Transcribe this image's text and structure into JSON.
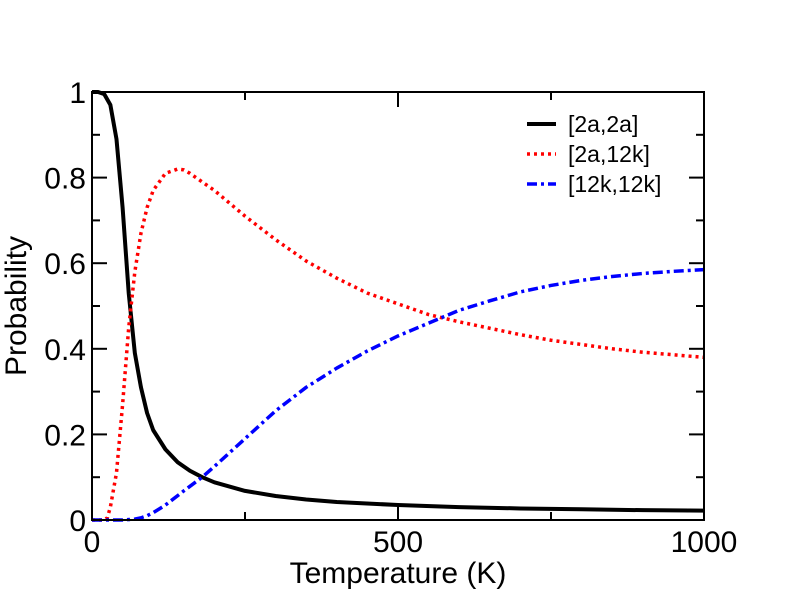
{
  "chart_data": {
    "type": "line",
    "title": "",
    "xlabel": "Temperature (K)",
    "ylabel": "Probability",
    "xlim": [
      0,
      1000
    ],
    "ylim": [
      0,
      1
    ],
    "x_ticks": [
      0,
      500,
      1000
    ],
    "x_tick_labels": [
      "0",
      "500",
      "1000"
    ],
    "y_ticks": [
      0,
      0.2,
      0.4,
      0.6,
      0.8,
      1
    ],
    "y_tick_labels": [
      "0",
      "0.2",
      "0.4",
      "0.6",
      "0.8",
      "1"
    ],
    "grid": false,
    "legend_position": "top-right",
    "series": [
      {
        "name": "[2a,2a]",
        "color": "#000000",
        "style": "solid",
        "x": [
          0,
          10,
          20,
          30,
          40,
          50,
          60,
          70,
          80,
          90,
          100,
          120,
          140,
          160,
          180,
          200,
          250,
          300,
          350,
          400,
          500,
          600,
          700,
          800,
          900,
          1000
        ],
        "y": [
          1.0,
          1.0,
          0.995,
          0.97,
          0.89,
          0.73,
          0.53,
          0.39,
          0.31,
          0.25,
          0.21,
          0.165,
          0.135,
          0.115,
          0.1,
          0.088,
          0.068,
          0.056,
          0.048,
          0.042,
          0.035,
          0.03,
          0.027,
          0.025,
          0.023,
          0.022
        ]
      },
      {
        "name": "[2a,12k]",
        "color": "#ff0000",
        "style": "dotted",
        "x": [
          0,
          20,
          25,
          30,
          40,
          50,
          60,
          70,
          80,
          90,
          100,
          120,
          140,
          150,
          160,
          180,
          200,
          250,
          300,
          350,
          400,
          450,
          500,
          550,
          600,
          650,
          700,
          750,
          800,
          850,
          900,
          950,
          1000
        ],
        "y": [
          0.0,
          0.0,
          0.005,
          0.03,
          0.11,
          0.27,
          0.45,
          0.58,
          0.67,
          0.73,
          0.77,
          0.81,
          0.82,
          0.818,
          0.81,
          0.79,
          0.77,
          0.71,
          0.655,
          0.605,
          0.565,
          0.53,
          0.505,
          0.48,
          0.463,
          0.448,
          0.433,
          0.42,
          0.41,
          0.4,
          0.392,
          0.386,
          0.38
        ]
      },
      {
        "name": "[12k,12k]",
        "color": "#0000ff",
        "style": "dashdot",
        "x": [
          0,
          50,
          70,
          80,
          90,
          100,
          120,
          150,
          180,
          200,
          250,
          300,
          350,
          400,
          450,
          500,
          550,
          600,
          650,
          700,
          750,
          800,
          850,
          900,
          950,
          1000
        ],
        "y": [
          0.0,
          0.0,
          0.002,
          0.005,
          0.01,
          0.017,
          0.035,
          0.068,
          0.1,
          0.125,
          0.19,
          0.255,
          0.31,
          0.355,
          0.395,
          0.43,
          0.46,
          0.49,
          0.512,
          0.533,
          0.548,
          0.56,
          0.569,
          0.576,
          0.581,
          0.585
        ]
      }
    ]
  }
}
